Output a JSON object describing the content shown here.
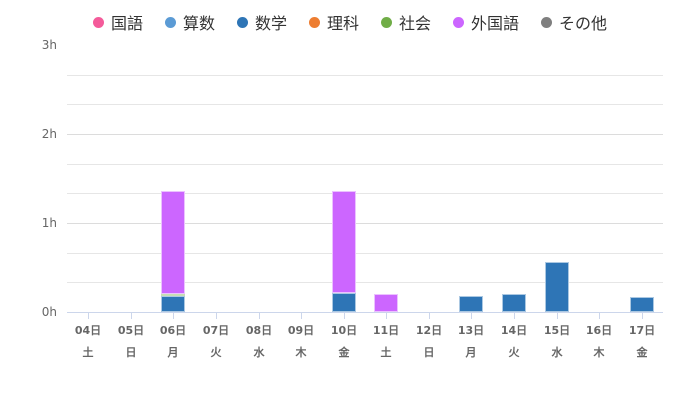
{
  "legend": [
    {
      "label": "国語",
      "color": "#f45b9a"
    },
    {
      "label": "算数",
      "color": "#5b9bd5"
    },
    {
      "label": "数学",
      "color": "#2e75b6"
    },
    {
      "label": "理科",
      "color": "#ed7d31"
    },
    {
      "label": "社会",
      "color": "#70ad47"
    },
    {
      "label": "外国語",
      "color": "#cc66ff"
    },
    {
      "label": "その他",
      "color": "#7f7f7f"
    }
  ],
  "y_axis": {
    "labels": [
      "3h",
      "2h",
      "1h",
      "0h"
    ]
  },
  "x_axis": {
    "dates": [
      "04日",
      "05日",
      "06日",
      "07日",
      "08日",
      "09日",
      "10日",
      "11日",
      "12日",
      "13日",
      "14日",
      "15日",
      "16日",
      "17日"
    ],
    "weekdays": [
      "土",
      "日",
      "月",
      "火",
      "水",
      "木",
      "金",
      "土",
      "日",
      "月",
      "火",
      "水",
      "木",
      "金"
    ]
  },
  "chart_data": {
    "type": "bar",
    "stacked": true,
    "title": "",
    "xlabel": "",
    "ylabel": "",
    "ylim": [
      0,
      3
    ],
    "y_unit": "h",
    "grid": true,
    "legend_position": "top",
    "categories": [
      "04日(土)",
      "05日(日)",
      "06日(月)",
      "07日(火)",
      "08日(水)",
      "09日(木)",
      "10日(金)",
      "11日(土)",
      "12日(日)",
      "13日(月)",
      "14日(火)",
      "15日(水)",
      "16日(木)",
      "17日(金)"
    ],
    "series": [
      {
        "name": "国語",
        "color": "#f45b9a",
        "values": [
          0,
          0,
          0,
          0,
          0,
          0,
          0,
          0,
          0,
          0,
          0,
          0,
          0,
          0
        ]
      },
      {
        "name": "算数",
        "color": "#5b9bd5",
        "values": [
          0,
          0,
          0,
          0,
          0,
          0,
          0,
          0,
          0,
          0,
          0,
          0,
          0,
          0
        ]
      },
      {
        "name": "数学",
        "color": "#2e75b6",
        "values": [
          0,
          0,
          0.18,
          0,
          0,
          0,
          0.21,
          0,
          0,
          0.18,
          0.2,
          0.56,
          0,
          0.17
        ]
      },
      {
        "name": "理科",
        "color": "#ed7d31",
        "values": [
          0,
          0,
          0,
          0,
          0,
          0,
          0,
          0,
          0,
          0,
          0,
          0,
          0,
          0
        ]
      },
      {
        "name": "社会",
        "color": "#70ad47",
        "values": [
          0,
          0,
          0.02,
          0,
          0,
          0,
          0,
          0,
          0,
          0,
          0,
          0,
          0,
          0
        ]
      },
      {
        "name": "外国語",
        "color": "#cc66ff",
        "values": [
          0,
          0,
          1.16,
          0,
          0,
          0,
          1.15,
          0.2,
          0,
          0,
          0,
          0,
          0,
          0
        ]
      },
      {
        "name": "その他",
        "color": "#7f7f7f",
        "values": [
          0,
          0,
          0,
          0,
          0,
          0,
          0,
          0,
          0,
          0,
          0,
          0,
          0,
          0
        ]
      }
    ]
  }
}
